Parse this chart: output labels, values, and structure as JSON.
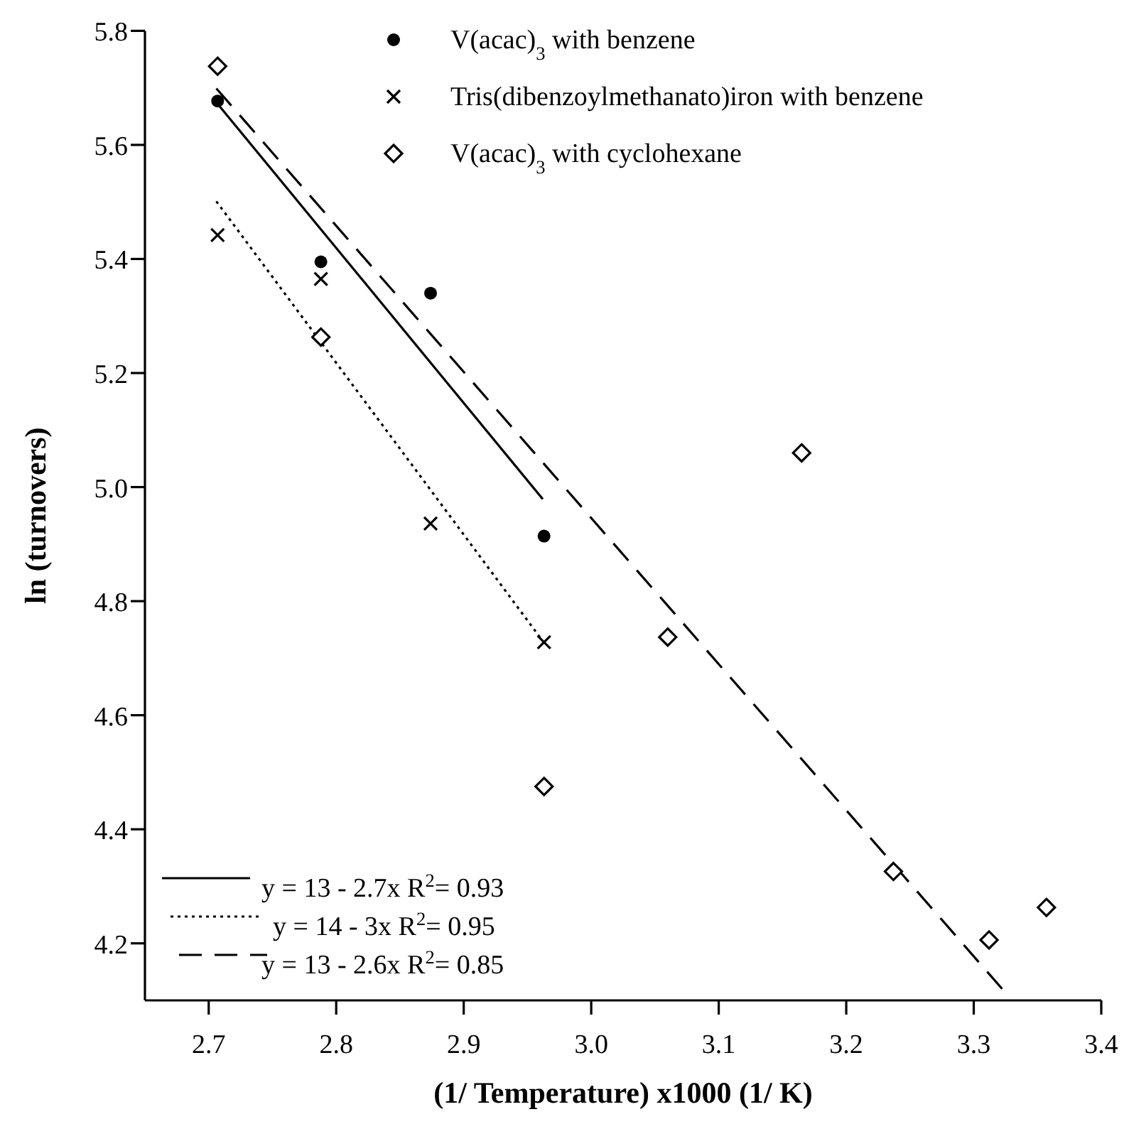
{
  "chart_data": {
    "type": "scatter",
    "xlabel": "(1/ Temperature) x1000 (1/ K)",
    "ylabel": "ln (turnovers)",
    "xlim": [
      2.65,
      3.4
    ],
    "ylim": [
      4.1,
      5.8
    ],
    "xticks": [
      {
        "value": 2.7,
        "label": "2.7"
      },
      {
        "value": 2.8,
        "label": "2.8"
      },
      {
        "value": 2.9,
        "label": "2.9"
      },
      {
        "value": 3.0,
        "label": "3.0"
      },
      {
        "value": 3.1,
        "label": "3.1"
      },
      {
        "value": 3.2,
        "label": "3.2"
      },
      {
        "value": 3.3,
        "label": "3.3"
      },
      {
        "value": 3.4,
        "label": "3.4"
      }
    ],
    "yticks": [
      {
        "value": 4.2,
        "label": "4.2"
      },
      {
        "value": 4.4,
        "label": "4.4"
      },
      {
        "value": 4.6,
        "label": "4.6"
      },
      {
        "value": 4.8,
        "label": "4.8"
      },
      {
        "value": 5.0,
        "label": "5.0"
      },
      {
        "value": 5.2,
        "label": "5.2"
      },
      {
        "value": 5.4,
        "label": "5.4"
      },
      {
        "value": 5.6,
        "label": "5.6"
      },
      {
        "value": 5.8,
        "label": "5.8"
      }
    ],
    "grid": false,
    "legend": "top",
    "series": [
      {
        "name": "V(acac)$_{3}$ with benzene",
        "color": "#000000",
        "marker": "circle",
        "x": [
          2.707,
          2.788,
          2.874,
          2.963
        ],
        "values": [
          5.677,
          5.395,
          5.34,
          4.914
        ]
      },
      {
        "name": "Tris(dibenzoylmethanato)iron with benzene",
        "color": "#000000",
        "marker": "cross",
        "x": [
          2.707,
          2.788,
          2.874,
          2.963
        ],
        "values": [
          5.442,
          5.365,
          4.936,
          4.728
        ]
      },
      {
        "name": "V(acac)$_{3}$ with cyclohexane",
        "color": "#000000",
        "marker": "diamond",
        "x": [
          2.707,
          2.788,
          2.963,
          3.06,
          3.165,
          3.237,
          3.312,
          3.357
        ],
        "values": [
          5.738,
          5.263,
          4.475,
          4.737,
          5.06,
          4.326,
          4.206,
          4.263
        ]
      },
      {
        "type": "line",
        "name": "y = 13 - 2.7x R$^{2}$= 0.93",
        "color": "#000000",
        "marker": "none",
        "line_style": "solid",
        "x": [
          2.707,
          2.962
        ],
        "values": [
          5.672,
          4.979
        ]
      },
      {
        "type": "line",
        "name": "y = 14 - 3x R$^{2}$= 0.95",
        "color": "#000000",
        "marker": "none",
        "line_style": "dotted",
        "x": [
          2.706,
          2.962
        ],
        "values": [
          5.501,
          4.73
        ]
      },
      {
        "type": "line",
        "name": "y = 13 - 2.6x R$^{2}$= 0.85",
        "color": "#000000",
        "marker": "none",
        "line_style": "dashed",
        "x": [
          2.706,
          3.327
        ],
        "values": [
          5.699,
          4.108
        ]
      }
    ]
  }
}
